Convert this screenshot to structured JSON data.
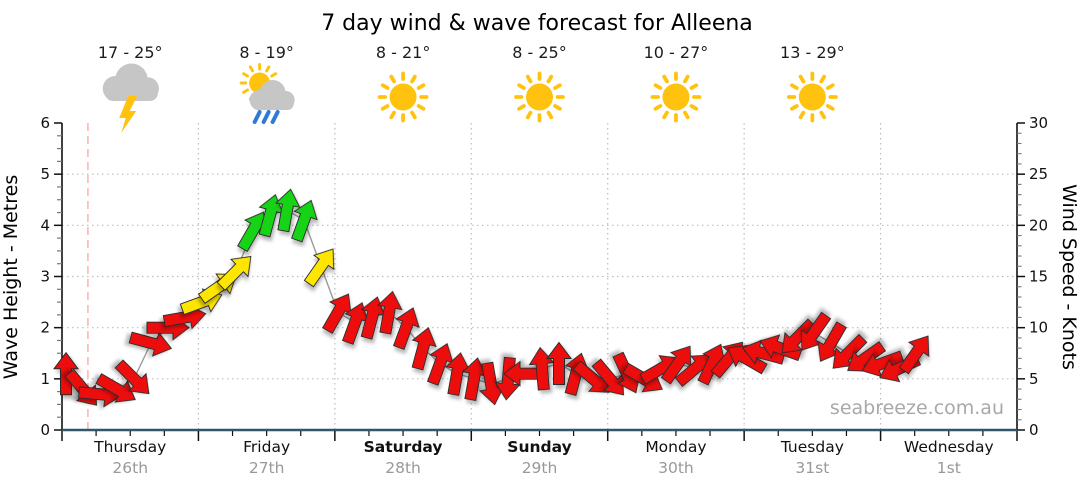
{
  "title": "7 day wind & wave forecast for Alleena",
  "watermark": "seabreeze.com.au",
  "axes": {
    "left_label": "Wave Height - Metres",
    "right_label": "Wind Speed - Knots",
    "left_ticks": [
      0,
      1,
      2,
      3,
      4,
      5,
      6
    ],
    "right_ticks": [
      0,
      5,
      10,
      15,
      20,
      25,
      30
    ],
    "left_max": 6,
    "right_max": 30
  },
  "days": [
    {
      "name": "Thursday",
      "date": "26th",
      "temp": "17 - 25°",
      "icon": "storm",
      "bold": false
    },
    {
      "name": "Friday",
      "date": "27th",
      "temp": "8 - 19°",
      "icon": "sun-cloud-rain",
      "bold": false
    },
    {
      "name": "Saturday",
      "date": "28th",
      "temp": "8 - 21°",
      "icon": "sunny",
      "bold": true
    },
    {
      "name": "Sunday",
      "date": "29th",
      "temp": "8 - 25°",
      "icon": "sunny",
      "bold": true
    },
    {
      "name": "Monday",
      "date": "30th",
      "temp": "10 - 27°",
      "icon": "sunny",
      "bold": false
    },
    {
      "name": "Tuesday",
      "date": "31st",
      "temp": "13 - 29°",
      "icon": "sunny",
      "bold": false
    },
    {
      "name": "Wednesday",
      "date": "1st",
      "temp": "",
      "icon": "none",
      "bold": false
    }
  ],
  "chart_data": {
    "type": "scatter",
    "title": "7 day wind & wave forecast for Alleena",
    "ylabel_left": "Wave Height - Metres",
    "ylabel_right": "Wind Speed - Knots",
    "ylim_left": [
      0,
      6
    ],
    "ylim_right": [
      0,
      30
    ],
    "grid": "dotted horizontal at 1-5 m (5-25 kn), dotted vertical at day boundaries",
    "x_days": [
      "Thursday 26th",
      "Friday 27th",
      "Saturday 28th",
      "Sunday 29th",
      "Monday 30th",
      "Tuesday 31st",
      "Wednesday 1st"
    ],
    "interval_hours": 3,
    "now_marker_day_fraction": 0.19,
    "wind": {
      "units": "knots",
      "speeds_kn": [
        5.5,
        4,
        3.5,
        4,
        5,
        8.5,
        10,
        11,
        12.5,
        14,
        15.5,
        19.5,
        21,
        21.5,
        20.5,
        16,
        11.5,
        10.5,
        11,
        11.5,
        10,
        8,
        6.5,
        5.5,
        5,
        4.5,
        5,
        5.5,
        6,
        6.5,
        5.5,
        5,
        5,
        5.5,
        5,
        6,
        6.5,
        6,
        6.5,
        7,
        7,
        7.5,
        8,
        9,
        9.5,
        8.5,
        7.5,
        7,
        6.5,
        6,
        7.5
      ],
      "dirs_deg_pointing": [
        0,
        140,
        95,
        120,
        135,
        105,
        90,
        80,
        70,
        55,
        45,
        30,
        15,
        10,
        20,
        35,
        30,
        20,
        15,
        10,
        20,
        15,
        20,
        10,
        10,
        170,
        185,
        270,
        355,
        0,
        15,
        130,
        140,
        155,
        120,
        60,
        35,
        50,
        25,
        40,
        300,
        285,
        290,
        225,
        215,
        210,
        225,
        235,
        250,
        245,
        35
      ]
    },
    "color_thresholds_kn": {
      "yellow_min": 12,
      "green_min": 18
    }
  },
  "palette": {
    "arrow_red": "#ee1111",
    "arrow_yellow": "#ffe600",
    "arrow_green": "#16d316",
    "arrow_outline": "#2a2a2a",
    "series_line": "#9a9a9a",
    "grid": "#bdbdbd",
    "now_line": "#ffb0b0",
    "axis_bottom": "#2f566b",
    "axis_dark": "#111111",
    "minor_tick": "#777777",
    "day_text": "#111111",
    "date_text": "#999999",
    "temp_text": "#1c1c1c",
    "sun": "#ffc20e",
    "cloud": "#c6c6c6",
    "rain": "#2e7bd6",
    "bolt": "#ffc20e"
  }
}
